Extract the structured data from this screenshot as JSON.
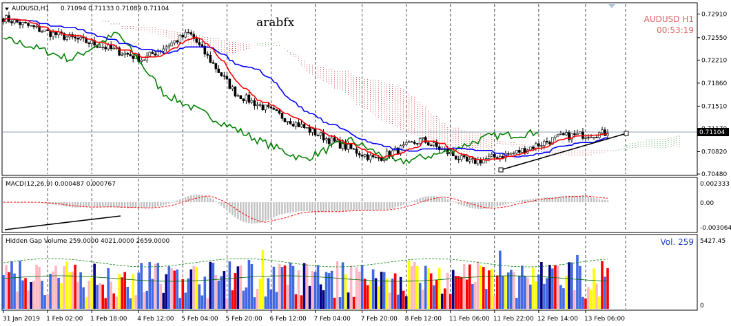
{
  "header": {
    "symbol_label": "AUDUSD,H1",
    "ohlc": "0.71094 0.71133 0.71089 0.71104",
    "watermark": "arabfx",
    "symbol_tag": "AUDUSD  H1",
    "countdown": "00:53:19",
    "current_price": "0.71104"
  },
  "colors": {
    "tenkan": "#ff0000",
    "kijun": "#0000ff",
    "chikou": "#008000",
    "cloud_bull": "#228b22",
    "cloud_bear": "#b22222",
    "macd_hist": "#c0c0c0",
    "macd_signal": "#ff0000",
    "vol_blue": "#4169e1",
    "vol_red": "#ff0000",
    "vol_navy": "#000080",
    "vol_pink": "#ffb6c1",
    "vol_yellow": "#ffff00"
  },
  "price_axis": {
    "ticks": [
      "0.72910",
      "0.72550",
      "0.72210",
      "0.71860",
      "0.71510",
      "0.71170",
      "0.70820",
      "0.70480"
    ]
  },
  "macd_panel": {
    "label": "MACD(12,26,9) 0.000487 0.000767",
    "ticks": [
      "0.002333",
      "0.00",
      "-0.003064"
    ]
  },
  "volume_panel": {
    "label": "Hidden Gap Volume 259.0000 4021.0000 2659.0000",
    "vol_tag": "Vol.  259",
    "ticks": [
      "5427.45",
      "0"
    ]
  },
  "time_axis": {
    "labels": [
      "31 Jan 2019",
      "1 Feb 02:00",
      "1 Feb 18:00",
      "4 Feb 12:00",
      "5 Feb 04:00",
      "5 Feb 20:00",
      "6 Feb 12:00",
      "7 Feb 04:00",
      "7 Feb 20:00",
      "8 Feb 12:00",
      "11 Feb 06:00",
      "11 Feb 22:00",
      "12 Feb 14:00",
      "13 Feb 06:00"
    ]
  },
  "chart_data": {
    "type": "candlestick",
    "symbol": "AUDUSD",
    "timeframe": "H1",
    "ylim": [
      0.7048,
      0.7306
    ],
    "last_close": 0.71104,
    "key_points": [
      {
        "x": "31 Jan 2019",
        "close": 0.7285
      },
      {
        "x": "1 Feb 02:00",
        "close": 0.7262
      },
      {
        "x": "1 Feb 18:00",
        "close": 0.7245
      },
      {
        "x": "4 Feb 12:00",
        "close": 0.7222
      },
      {
        "x": "5 Feb 04:00",
        "close": 0.7262
      },
      {
        "x": "5 Feb 20:00",
        "close": 0.717
      },
      {
        "x": "6 Feb 12:00",
        "close": 0.7135
      },
      {
        "x": "7 Feb 04:00",
        "close": 0.71
      },
      {
        "x": "7 Feb 20:00",
        "close": 0.707
      },
      {
        "x": "8 Feb 12:00",
        "close": 0.71
      },
      {
        "x": "11 Feb 06:00",
        "close": 0.7065
      },
      {
        "x": "11 Feb 22:00",
        "close": 0.708
      },
      {
        "x": "12 Feb 14:00",
        "close": 0.7105
      },
      {
        "x": "13 Feb 06:00",
        "close": 0.71104
      }
    ]
  }
}
